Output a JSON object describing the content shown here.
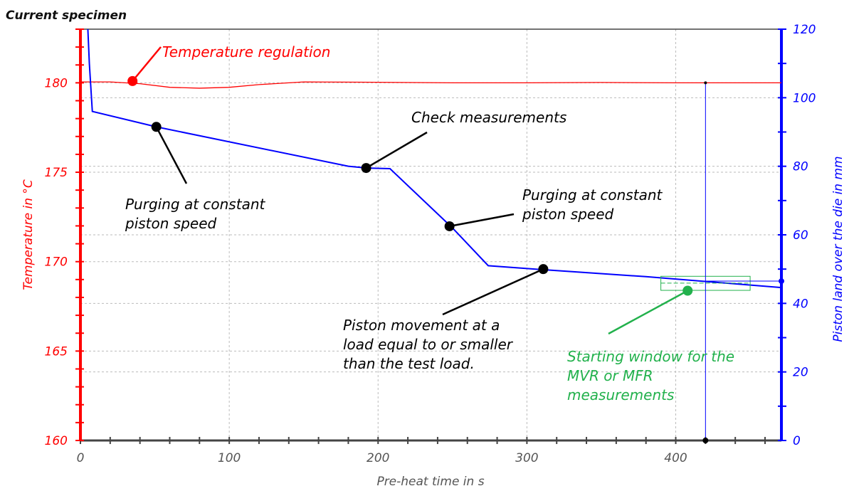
{
  "title": "Current specimen",
  "colors": {
    "temperature": "#ff0000",
    "piston": "#0000ff",
    "window": "#22b14c",
    "annotation": "#000000",
    "axis": "#444444"
  },
  "chart_data": {
    "type": "line",
    "title": "Current specimen",
    "xlabel": "Pre-heat time in s",
    "ylabel_left": "Temperature in °C",
    "ylabel_right": "Piston land over the die in mm",
    "xlim": [
      0,
      471
    ],
    "ylim_left": [
      160,
      183
    ],
    "ylim_right": [
      0,
      120
    ],
    "x_ticks": [
      "0",
      "100",
      "200",
      "300",
      "400"
    ],
    "x_tick_values": [
      0,
      100,
      200,
      300,
      400
    ],
    "left_ticks": [
      "160",
      "165",
      "170",
      "175",
      "180"
    ],
    "left_tick_values": [
      160,
      165,
      170,
      175,
      180
    ],
    "right_ticks": [
      "0",
      "20",
      "40",
      "60",
      "80",
      "100",
      "120"
    ],
    "right_tick_values": [
      0,
      20,
      40,
      60,
      80,
      100,
      120
    ],
    "grid": true,
    "series": [
      {
        "name": "Temperature",
        "axis": "left",
        "x": [
          0,
          20,
          40,
          60,
          80,
          100,
          120,
          150,
          200,
          250,
          300,
          350,
          400,
          471
        ],
        "y": [
          180.05,
          180.05,
          179.95,
          179.75,
          179.7,
          179.75,
          179.9,
          180.05,
          180.03,
          180.0,
          180.0,
          180.02,
          180.0,
          180.0
        ]
      },
      {
        "name": "Piston land",
        "axis": "right",
        "x": [
          5,
          6,
          8,
          51,
          180,
          192,
          208,
          250,
          274,
          312,
          380,
          471
        ],
        "y": [
          120,
          110,
          96,
          91.5,
          80,
          79.5,
          79.3,
          62,
          51,
          49.8,
          47.8,
          44.6
        ]
      }
    ],
    "cursor": {
      "x": 420,
      "y_right": 46.5
    },
    "starting_window": {
      "x": [
        390,
        450
      ],
      "y_right": [
        43.8,
        47.9
      ],
      "level": 45.9
    },
    "annotations": [
      {
        "text_lines": [
          "Temperature regulation"
        ],
        "color": "red",
        "point": [
          35,
          180.1
        ],
        "axis": "left"
      },
      {
        "text_lines": [
          "Purging at constant",
          "piston speed"
        ],
        "color": "black",
        "point": [
          51,
          91.5
        ],
        "axis": "right"
      },
      {
        "text_lines": [
          "Check measurements"
        ],
        "color": "black",
        "point": [
          192,
          79.5
        ],
        "axis": "right"
      },
      {
        "text_lines": [
          "Purging at constant",
          "piston speed"
        ],
        "color": "black",
        "point": [
          248,
          62.5
        ],
        "axis": "right"
      },
      {
        "text_lines": [
          "Piston movement at a",
          "load equal to or smaller",
          "than the test load."
        ],
        "color": "black",
        "point": [
          311,
          50
        ],
        "axis": "right"
      },
      {
        "text_lines": [
          "Starting window for the",
          "MVR or MFR",
          "measurements"
        ],
        "color": "green",
        "point": [
          408,
          43.7
        ],
        "axis": "right"
      }
    ]
  }
}
